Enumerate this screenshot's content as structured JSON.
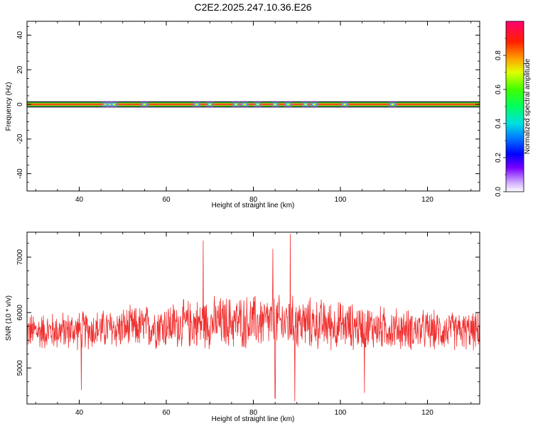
{
  "title": "C2E2.2025.247.10.36.E26",
  "colors": {
    "snr_line": "#f03030",
    "band_edge": "#1a8a1a",
    "band_center": "#e8102a"
  },
  "chart_data": [
    {
      "type": "heatmap",
      "xlabel": "Height of straight line (km)",
      "ylabel": "Frequency (Hz)",
      "xlim": [
        28,
        132
      ],
      "ylim": [
        -50,
        48
      ],
      "xticks": [
        40,
        60,
        80,
        100,
        120
      ],
      "yticks": [
        40,
        20,
        0,
        -20,
        -40
      ],
      "band_center_hz": 0,
      "band_halfwidth_hz": 1.5,
      "colorbar": {
        "label": "Normalized spectral amplitude",
        "ticks": [
          0.0,
          0.2,
          0.4,
          0.6,
          0.8
        ],
        "range": [
          0,
          1
        ]
      },
      "hotspots_km": [
        46,
        47,
        48,
        55,
        67,
        70,
        76,
        78,
        81,
        85,
        88,
        92,
        94,
        101,
        112
      ]
    },
    {
      "type": "line",
      "xlabel": "Height of straight line (km)",
      "ylabel": "SNR (10 * v/v)",
      "xlim": [
        28,
        132
      ],
      "ylim": [
        4350,
        7450
      ],
      "xticks": [
        40,
        60,
        80,
        100,
        120
      ],
      "yticks": [
        7000,
        6000,
        5000
      ],
      "series": [
        {
          "baseline": 5650,
          "noise_amplitude": 420,
          "spikes": [
            [
              68.5,
              7300
            ],
            [
              84.5,
              7150
            ],
            [
              88.5,
              7420
            ],
            [
              85,
              4450
            ],
            [
              89.5,
              4400
            ],
            [
              40.5,
              4600
            ],
            [
              105.5,
              4550
            ]
          ]
        }
      ]
    }
  ]
}
